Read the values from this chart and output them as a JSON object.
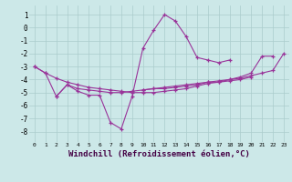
{
  "background_color": "#cce8e8",
  "grid_color": "#aacccc",
  "line_color": "#993399",
  "marker": "+",
  "xlabel": "Windchill (Refroidissement éolien,°C)",
  "xlabel_fontsize": 6.5,
  "xlim": [
    -0.5,
    23.5
  ],
  "ylim": [
    -8.8,
    1.7
  ],
  "yticks": [
    1,
    0,
    -1,
    -2,
    -3,
    -4,
    -5,
    -6,
    -7,
    -8
  ],
  "xticks": [
    0,
    1,
    2,
    3,
    4,
    5,
    6,
    7,
    8,
    9,
    10,
    11,
    12,
    13,
    14,
    15,
    16,
    17,
    18,
    19,
    20,
    21,
    22,
    23
  ],
  "series": [
    [
      0,
      -3.0,
      1,
      -3.5,
      2,
      -5.3,
      3,
      -4.4,
      4,
      -4.9,
      5,
      -5.2,
      6,
      -5.2,
      7,
      -7.3,
      8,
      -7.8,
      9,
      -5.3,
      10,
      -1.6,
      11,
      -0.2,
      12,
      1.0,
      13,
      0.5,
      14,
      -0.7,
      15,
      -2.3,
      16,
      -2.5,
      17,
      -2.7,
      18,
      -2.5
    ],
    [
      2,
      -5.3,
      3,
      -4.4,
      4,
      -4.7,
      5,
      -4.8,
      6,
      -4.9,
      7,
      -5.0,
      8,
      -5.0,
      9,
      -4.9,
      10,
      -4.8,
      11,
      -4.7,
      12,
      -4.7,
      13,
      -4.6,
      14,
      -4.5,
      15,
      -4.4,
      16,
      -4.2,
      17,
      -4.2,
      18,
      -4.1,
      19,
      -4.0,
      20,
      -3.8
    ],
    [
      0,
      -3.0,
      1,
      -3.5,
      2,
      -3.9,
      3,
      -4.2,
      4,
      -4.4,
      5,
      -4.6,
      6,
      -4.7,
      7,
      -4.8,
      8,
      -4.9,
      9,
      -5.0,
      10,
      -5.0,
      11,
      -5.0,
      12,
      -4.9,
      13,
      -4.8,
      14,
      -4.7,
      15,
      -4.5,
      16,
      -4.3,
      17,
      -4.2,
      18,
      -4.0,
      19,
      -3.8,
      20,
      -3.5,
      21,
      -2.2,
      22,
      -2.2
    ],
    [
      10,
      -4.8,
      11,
      -4.7,
      12,
      -4.6,
      13,
      -4.5,
      14,
      -4.4,
      15,
      -4.3,
      16,
      -4.2,
      17,
      -4.1,
      18,
      -4.0,
      19,
      -3.9,
      20,
      -3.7,
      21,
      -3.5,
      22,
      -3.3,
      23,
      -2.0
    ]
  ]
}
